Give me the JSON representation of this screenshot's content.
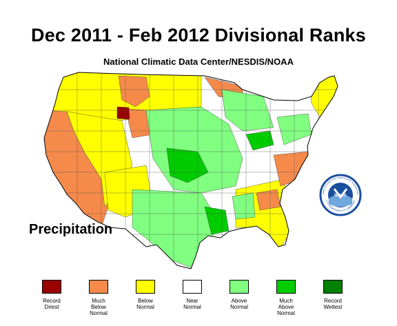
{
  "header": {
    "title": "Dec 2011 - Feb 2012 Divisional Ranks",
    "subtitle": "National Climatic Data Center/NESDIS/NOAA"
  },
  "map": {
    "variable_label": "Precipitation",
    "region": "Contiguous United States climate divisions",
    "colors": {
      "record_driest": "#990000",
      "much_below": "#f58a4b",
      "below": "#ffff00",
      "near": "#ffffff",
      "above": "#80ff80",
      "much_above": "#00cc00",
      "record_wettest": "#008000"
    }
  },
  "logo": {
    "icon": "noaa-logo-icon",
    "ring_color": "#1a4fa0",
    "top_text": "NATIONAL OCEANIC AND ATMOSPHERIC ADMINISTRATION",
    "bottom_text": "U.S. DEPARTMENT OF COMMERCE"
  },
  "legend": [
    {
      "label": "Record\nDriest",
      "color": "#990000"
    },
    {
      "label": "Much\nBelow\nNormal",
      "color": "#f58a4b"
    },
    {
      "label": "Below\nNormal",
      "color": "#ffff00"
    },
    {
      "label": "Near\nNormal",
      "color": "#ffffff"
    },
    {
      "label": "Above\nNormal",
      "color": "#80ff80"
    },
    {
      "label": "Much\nAbove\nNormal",
      "color": "#00cc00"
    },
    {
      "label": "Record\nWettest",
      "color": "#008000"
    }
  ]
}
